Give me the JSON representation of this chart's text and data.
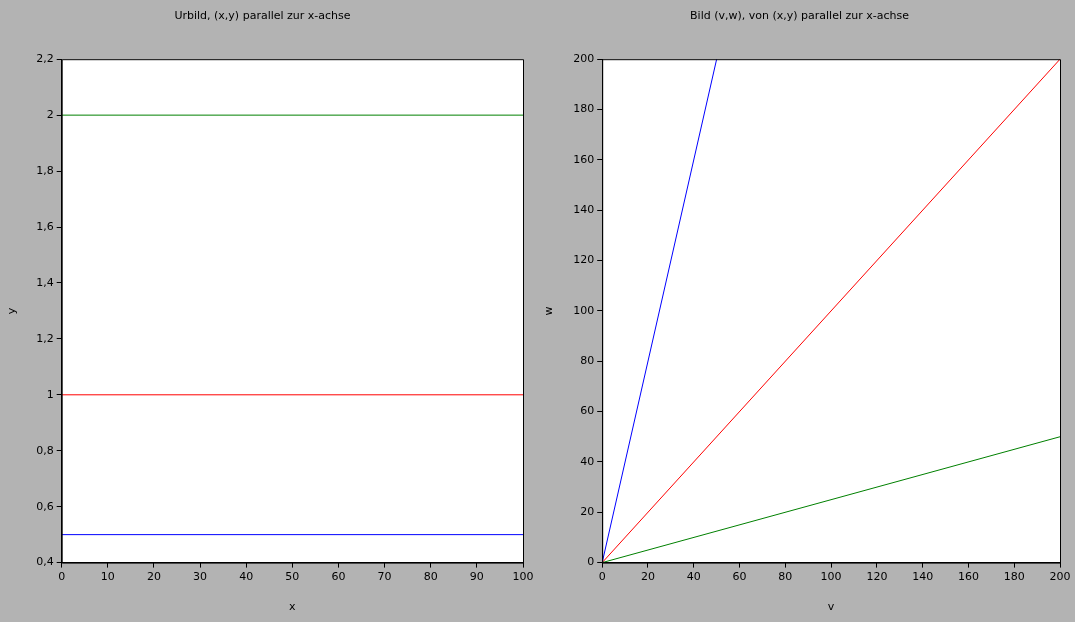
{
  "chart_data": [
    {
      "type": "line",
      "title": "Urbild, (x,y) parallel zur x-achse",
      "xlabel": "x",
      "ylabel": "y",
      "xlim": [
        0,
        100
      ],
      "xticks": [
        0,
        10,
        20,
        30,
        40,
        50,
        60,
        70,
        80,
        90,
        100
      ],
      "ylim": [
        0.4,
        2.2
      ],
      "yticks": [
        {
          "value": 0.4,
          "label": "0,4"
        },
        {
          "value": 0.6,
          "label": "0,6"
        },
        {
          "value": 0.8,
          "label": "0,8"
        },
        1,
        {
          "value": 1.2,
          "label": "1,2"
        },
        {
          "value": 1.4,
          "label": "1,4"
        },
        {
          "value": 1.6,
          "label": "1,6"
        },
        {
          "value": 1.8,
          "label": "1,8"
        },
        2,
        {
          "value": 2.2,
          "label": "2,2"
        }
      ],
      "grid": false,
      "legend": false,
      "marker": "none",
      "line_style": "solid",
      "series": [
        {
          "color": "#008000",
          "x": [
            0,
            100
          ],
          "values": [
            2,
            2
          ]
        },
        {
          "color": "#ff0000",
          "x": [
            0,
            100
          ],
          "values": [
            1,
            1
          ]
        },
        {
          "color": "#0000ff",
          "x": [
            0,
            100
          ],
          "values": [
            0.5,
            0.5
          ]
        }
      ]
    },
    {
      "type": "line",
      "title": "Bild (v,w), von (x,y) parallel zur x-achse",
      "xlabel": "v",
      "ylabel": "w",
      "xlim": [
        0,
        200
      ],
      "xticks": [
        0,
        20,
        40,
        60,
        80,
        100,
        120,
        140,
        160,
        180,
        200
      ],
      "ylim": [
        0,
        200
      ],
      "yticks": [
        0,
        20,
        40,
        60,
        80,
        100,
        120,
        140,
        160,
        180,
        200
      ],
      "grid": false,
      "legend": false,
      "marker": "none",
      "line_style": "solid",
      "series": [
        {
          "color": "#008000",
          "x": [
            0,
            200
          ],
          "values": [
            0,
            50
          ]
        },
        {
          "color": "#ff0000",
          "x": [
            0,
            200
          ],
          "values": [
            0,
            200
          ]
        },
        {
          "color": "#0000ff",
          "x": [
            0,
            50
          ],
          "values": [
            0,
            200
          ]
        }
      ]
    }
  ]
}
